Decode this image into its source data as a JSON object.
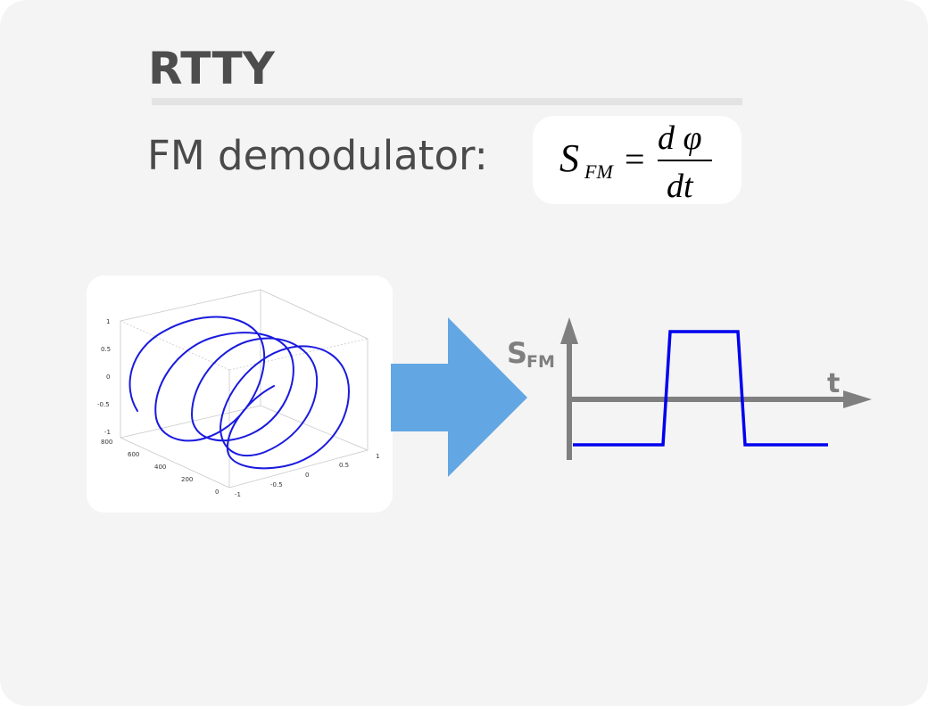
{
  "slide": {
    "title": "RTTY",
    "subtitle": "FM demodulator:",
    "formula": {
      "lhs_symbol": "S",
      "lhs_subscript": "FM",
      "equals": "=",
      "numerator": "d φ",
      "denominator": "dt"
    },
    "helix_plot": {
      "z_ticks": [
        "1",
        "0.5",
        "0",
        "-0.5",
        "-1"
      ],
      "depth_ticks": [
        "800",
        "600",
        "400",
        "200",
        "0"
      ],
      "x_ticks": [
        "-1",
        "-0.5",
        "0",
        "0.5",
        "1"
      ],
      "curve_color": "#1a1adf"
    },
    "signal_plot": {
      "y_label": "S",
      "y_label_subscript": "FM",
      "x_label": "t",
      "axis_color": "#7f7f7f",
      "signal_color": "#0000ee",
      "signal_levels": [
        "low",
        "high",
        "low"
      ]
    },
    "arrow_color": "#63a6e4"
  }
}
